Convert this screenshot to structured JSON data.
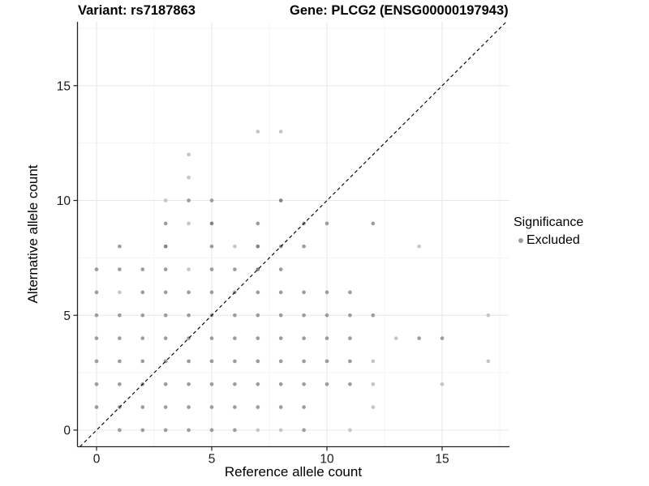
{
  "header": {
    "variant_title": "Variant: rs7187863",
    "gene_title": "Gene: PLCG2 (ENSG00000197943)"
  },
  "legend": {
    "title": "Significance",
    "items": [
      {
        "label": "Excluded",
        "marker_color": "#9d9d9d"
      }
    ]
  },
  "colors": {
    "point_light": "#c6c6c6",
    "point_medium": "#9d9d9d",
    "point_dark": "#848484",
    "grid_major": "#e7e7e7",
    "grid_minor": "#f3f3f3",
    "axis_line": "#222222",
    "tick_text": "#1a1a1a",
    "reference_line": "#000000"
  },
  "chart_data": {
    "type": "scatter",
    "title": "Variant: rs7187863 | Gene: PLCG2 (ENSG00000197943)",
    "xlabel": "Reference allele count",
    "ylabel": "Alternative allele count",
    "xlim": [
      -0.85,
      17.85
    ],
    "ylim": [
      -0.72,
      17.78
    ],
    "x_ticks": [
      0,
      5,
      10,
      15
    ],
    "y_ticks": [
      0,
      5,
      10,
      15
    ],
    "minor_gridlines": [
      2.5,
      7.5,
      12.5,
      17.5
    ],
    "grid": true,
    "legend_position": "right",
    "reference_line": {
      "equation": "y = x",
      "style": "dashed",
      "color": "#000000"
    },
    "series": [
      {
        "name": "Excluded",
        "marker": "circle",
        "points": [
          [
            1,
            0,
            "m"
          ],
          [
            2,
            0,
            "m"
          ],
          [
            3,
            0,
            "m"
          ],
          [
            4,
            0,
            "m"
          ],
          [
            5,
            0,
            "m"
          ],
          [
            6,
            0,
            "m"
          ],
          [
            7,
            0,
            "l"
          ],
          [
            8,
            0,
            "l"
          ],
          [
            9,
            0,
            "m"
          ],
          [
            11,
            0,
            "l"
          ],
          [
            0,
            1,
            "m"
          ],
          [
            1,
            1,
            "m"
          ],
          [
            2,
            1,
            "m"
          ],
          [
            3,
            1,
            "m"
          ],
          [
            4,
            1,
            "m"
          ],
          [
            5,
            1,
            "m"
          ],
          [
            6,
            1,
            "m"
          ],
          [
            7,
            1,
            "m"
          ],
          [
            8,
            1,
            "m"
          ],
          [
            9,
            1,
            "m"
          ],
          [
            12,
            1,
            "l"
          ],
          [
            0,
            2,
            "m"
          ],
          [
            1,
            2,
            "m"
          ],
          [
            2,
            2,
            "m"
          ],
          [
            3,
            2,
            "m"
          ],
          [
            4,
            2,
            "m"
          ],
          [
            5,
            2,
            "m"
          ],
          [
            6,
            2,
            "m"
          ],
          [
            7,
            2,
            "m"
          ],
          [
            8,
            2,
            "m"
          ],
          [
            9,
            2,
            "m"
          ],
          [
            10,
            2,
            "m"
          ],
          [
            11,
            2,
            "m"
          ],
          [
            12,
            2,
            "l"
          ],
          [
            15,
            2,
            "l"
          ],
          [
            0,
            3,
            "m"
          ],
          [
            1,
            3,
            "m"
          ],
          [
            2,
            3,
            "m"
          ],
          [
            3,
            3,
            "m"
          ],
          [
            4,
            3,
            "m"
          ],
          [
            5,
            3,
            "m"
          ],
          [
            6,
            3,
            "m"
          ],
          [
            7,
            3,
            "m"
          ],
          [
            8,
            3,
            "m"
          ],
          [
            9,
            3,
            "m"
          ],
          [
            10,
            3,
            "m"
          ],
          [
            11,
            3,
            "m"
          ],
          [
            12,
            3,
            "l"
          ],
          [
            17,
            3,
            "l"
          ],
          [
            0,
            4,
            "m"
          ],
          [
            1,
            4,
            "m"
          ],
          [
            2,
            4,
            "m"
          ],
          [
            3,
            4,
            "m"
          ],
          [
            4,
            4,
            "m"
          ],
          [
            5,
            4,
            "m"
          ],
          [
            6,
            4,
            "m"
          ],
          [
            7,
            4,
            "m"
          ],
          [
            8,
            4,
            "m"
          ],
          [
            9,
            4,
            "m"
          ],
          [
            10,
            4,
            "m"
          ],
          [
            11,
            4,
            "m"
          ],
          [
            13,
            4,
            "l"
          ],
          [
            14,
            4,
            "m"
          ],
          [
            15,
            4,
            "m"
          ],
          [
            0,
            5,
            "m"
          ],
          [
            1,
            5,
            "m"
          ],
          [
            2,
            5,
            "m"
          ],
          [
            3,
            5,
            "m"
          ],
          [
            4,
            5,
            "m"
          ],
          [
            5,
            5,
            "m"
          ],
          [
            6,
            5,
            "m"
          ],
          [
            7,
            5,
            "m"
          ],
          [
            8,
            5,
            "m"
          ],
          [
            9,
            5,
            "m"
          ],
          [
            10,
            5,
            "m"
          ],
          [
            11,
            5,
            "m"
          ],
          [
            12,
            5,
            "m"
          ],
          [
            17,
            5,
            "l"
          ],
          [
            0,
            6,
            "m"
          ],
          [
            1,
            6,
            "l"
          ],
          [
            2,
            6,
            "m"
          ],
          [
            3,
            6,
            "m"
          ],
          [
            4,
            6,
            "m"
          ],
          [
            5,
            6,
            "m"
          ],
          [
            6,
            6,
            "m"
          ],
          [
            7,
            6,
            "m"
          ],
          [
            8,
            6,
            "m"
          ],
          [
            9,
            6,
            "m"
          ],
          [
            10,
            6,
            "m"
          ],
          [
            11,
            6,
            "m"
          ],
          [
            0,
            7,
            "m"
          ],
          [
            1,
            7,
            "m"
          ],
          [
            2,
            7,
            "m"
          ],
          [
            3,
            7,
            "m"
          ],
          [
            4,
            7,
            "l"
          ],
          [
            5,
            7,
            "m"
          ],
          [
            6,
            7,
            "m"
          ],
          [
            7,
            7,
            "d"
          ],
          [
            8,
            7,
            "m"
          ],
          [
            1,
            8,
            "m"
          ],
          [
            3,
            8,
            "d"
          ],
          [
            5,
            8,
            "m"
          ],
          [
            6,
            8,
            "l"
          ],
          [
            7,
            8,
            "d"
          ],
          [
            8,
            8,
            "m"
          ],
          [
            9,
            8,
            "m"
          ],
          [
            14,
            8,
            "l"
          ],
          [
            3,
            9,
            "m"
          ],
          [
            4,
            9,
            "l"
          ],
          [
            5,
            9,
            "d"
          ],
          [
            7,
            9,
            "m"
          ],
          [
            9,
            9,
            "m"
          ],
          [
            10,
            9,
            "m"
          ],
          [
            12,
            9,
            "m"
          ],
          [
            3,
            10,
            "l"
          ],
          [
            4,
            10,
            "m"
          ],
          [
            5,
            10,
            "m"
          ],
          [
            8,
            10,
            "d"
          ],
          [
            4,
            11,
            "l"
          ],
          [
            4,
            12,
            "l"
          ],
          [
            7,
            13,
            "l"
          ],
          [
            8,
            13,
            "l"
          ]
        ]
      }
    ]
  }
}
